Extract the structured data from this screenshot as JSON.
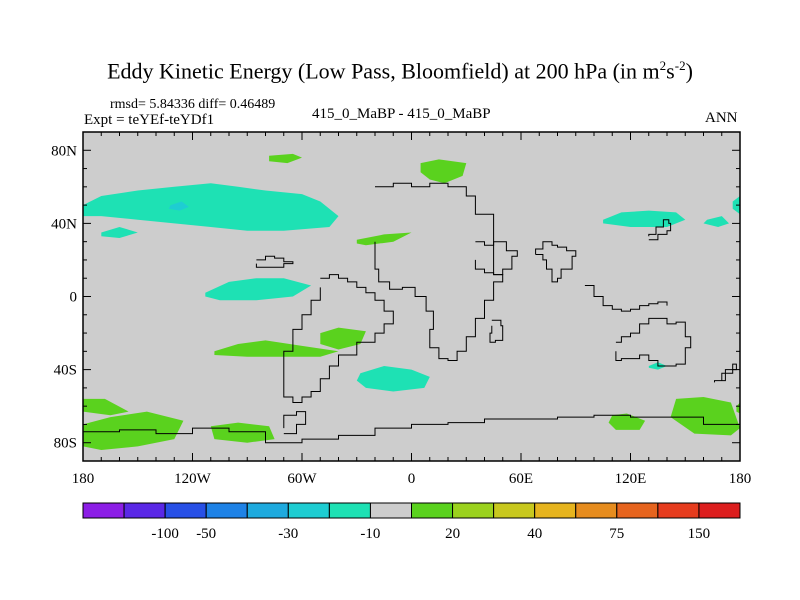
{
  "chart_data": {
    "type": "heatmap",
    "title_main": "Eddy Kinetic Energy (Low Pass, Bloomfield) at 200 hPa (in m",
    "title_sup1": "2",
    "title_mid": "s",
    "title_sup2": "-2",
    "title_end": ")",
    "rmsd_text": "rmsd= 5.84336 diff= 0.46489",
    "expt_text": "Expt = teYEf-teYDf1",
    "cases_text": "415_0_MaBP - 415_0_MaBP",
    "season_text": "ANN",
    "x_range": [
      -180,
      180
    ],
    "y_range": [
      -90,
      90
    ],
    "x_ticks": [
      {
        "value": -180,
        "label": "180"
      },
      {
        "value": -120,
        "label": "120W"
      },
      {
        "value": -60,
        "label": "60W"
      },
      {
        "value": 0,
        "label": "0"
      },
      {
        "value": 60,
        "label": "60E"
      },
      {
        "value": 120,
        "label": "120E"
      },
      {
        "value": 180,
        "label": "180"
      }
    ],
    "y_ticks": [
      {
        "value": 80,
        "label": "80N"
      },
      {
        "value": 40,
        "label": "40N"
      },
      {
        "value": 0,
        "label": "0"
      },
      {
        "value": -40,
        "label": "40S"
      },
      {
        "value": -80,
        "label": "80S"
      }
    ],
    "colorbar": {
      "colors": [
        "#8c1ee6",
        "#5a28e6",
        "#2850e6",
        "#1e82e6",
        "#1eaade",
        "#1ecdd2",
        "#1ee1b4",
        "#cdcdcd",
        "#5ad21e",
        "#9bd21e",
        "#c8c81e",
        "#e6b41e",
        "#e68c1e",
        "#e6641e",
        "#e63c1e",
        "#dc1e1e"
      ],
      "labels": [
        {
          "label": "-100",
          "boundary": 2
        },
        {
          "label": "-50",
          "boundary": 3
        },
        {
          "label": "-30",
          "boundary": 5
        },
        {
          "label": "-10",
          "boundary": 7
        },
        {
          "label": "20",
          "boundary": 9
        },
        {
          "label": "40",
          "boundary": 11
        },
        {
          "label": "75",
          "boundary": 13
        },
        {
          "label": "150",
          "boundary": 15
        }
      ]
    },
    "anomaly_regions": [
      {
        "name": "north-pacific-negative",
        "level": "-10",
        "color": "#1ee1b4",
        "lon": [
          -180,
          -170,
          -150,
          -130,
          -110,
          -95,
          -80,
          -60,
          -50,
          -40,
          -45,
          -70,
          -90,
          -110,
          -130,
          -150,
          -170,
          -180
        ],
        "lat": [
          50,
          55,
          58,
          60,
          62,
          60,
          58,
          56,
          52,
          44,
          38,
          36,
          36,
          38,
          40,
          42,
          44,
          44
        ]
      },
      {
        "name": "north-pacific-negative-core",
        "level": "-30",
        "color": "#1ecdd2",
        "lon": [
          -132,
          -126,
          -122,
          -127,
          -133
        ],
        "lat": [
          50,
          52,
          49,
          47,
          48
        ]
      },
      {
        "name": "north-atlantic-negative",
        "level": "-10",
        "color": "#1ee1b4",
        "lon": [
          -170,
          -160,
          -150,
          -160,
          -170
        ],
        "lat": [
          35,
          38,
          35,
          32,
          33
        ]
      },
      {
        "name": "east-pacific-west-negative",
        "level": "-10",
        "color": "#1ee1b4",
        "lon": [
          105,
          115,
          130,
          145,
          150,
          140,
          120,
          105
        ],
        "lat": [
          42,
          46,
          47,
          46,
          42,
          38,
          38,
          40
        ]
      },
      {
        "name": "dateline-negative",
        "level": "-10",
        "color": "#1ee1b4",
        "lon": [
          162,
          170,
          174,
          168,
          160
        ],
        "lat": [
          42,
          44,
          40,
          38,
          40
        ]
      },
      {
        "name": "east-edge-negative",
        "level": "-10",
        "color": "#1ee1b4",
        "lon": [
          176,
          180,
          180,
          176
        ],
        "lat": [
          52,
          55,
          45,
          48
        ]
      },
      {
        "name": "tropical-negative",
        "level": "-10",
        "color": "#1ee1b4",
        "lon": [
          -113,
          -100,
          -85,
          -70,
          -55,
          -65,
          -85,
          -105,
          -113
        ],
        "lat": [
          2,
          8,
          10,
          10,
          6,
          0,
          -2,
          -2,
          0
        ]
      },
      {
        "name": "south-atlantic-negative",
        "level": "-10",
        "color": "#1ee1b4",
        "lon": [
          -28,
          -15,
          0,
          10,
          7,
          -10,
          -25,
          -30
        ],
        "lat": [
          -42,
          -38,
          -40,
          -44,
          -50,
          -52,
          -50,
          -46
        ]
      },
      {
        "name": "indian-ocean-negative",
        "level": "-10",
        "color": "#1ee1b4",
        "lon": [
          130,
          135,
          140,
          135,
          130
        ],
        "lat": [
          -38,
          -36,
          -38,
          -40,
          -39
        ]
      },
      {
        "name": "greenland-positive",
        "level": "20",
        "color": "#5ad21e",
        "lon": [
          -78,
          -65,
          -60,
          -68,
          -78
        ],
        "lat": [
          77,
          78,
          76,
          73,
          74
        ]
      },
      {
        "name": "europe-positive",
        "level": "20",
        "color": "#5ad21e",
        "lon": [
          5,
          15,
          30,
          28,
          18,
          10,
          5
        ],
        "lat": [
          73,
          75,
          73,
          66,
          62,
          64,
          68
        ]
      },
      {
        "name": "mediterranean-positive",
        "level": "20",
        "color": "#5ad21e",
        "lon": [
          -30,
          -15,
          0,
          -10,
          -25,
          -30
        ],
        "lat": [
          31,
          34,
          35,
          30,
          28,
          29
        ]
      },
      {
        "name": "south-pacific-positive",
        "level": "20",
        "color": "#5ad21e",
        "lon": [
          -108,
          -95,
          -80,
          -60,
          -40,
          -50,
          -70,
          -90,
          -108
        ],
        "lat": [
          -30,
          -26,
          -24,
          -27,
          -30,
          -33,
          -33,
          -33,
          -32
        ]
      },
      {
        "name": "south-atlantic-small-positive",
        "level": "20",
        "color": "#5ad21e",
        "lon": [
          -50,
          -40,
          -25,
          -28,
          -40,
          -50
        ],
        "lat": [
          -20,
          -17,
          -19,
          -26,
          -29,
          -26
        ]
      },
      {
        "name": "southern-ocean-west-positive",
        "level": "20",
        "color": "#5ad21e",
        "lon": [
          -180,
          -165,
          -145,
          -125,
          -130,
          -150,
          -170,
          -180
        ],
        "lat": [
          -70,
          -66,
          -63,
          -68,
          -78,
          -82,
          -84,
          -82
        ]
      },
      {
        "name": "southern-ocean-small-west",
        "level": "20",
        "color": "#5ad21e",
        "lon": [
          -180,
          -168,
          -155,
          -165,
          -180
        ],
        "lat": [
          -56,
          -56,
          -63,
          -65,
          -63
        ]
      },
      {
        "name": "antarctic-edge-positive",
        "level": "20",
        "color": "#5ad21e",
        "lon": [
          -110,
          -95,
          -78,
          -75,
          -90,
          -108
        ],
        "lat": [
          -71,
          -69,
          -71,
          -78,
          -80,
          -78
        ]
      },
      {
        "name": "southern-ocean-east-positive",
        "level": "20",
        "color": "#5ad21e",
        "lon": [
          110,
          118,
          128,
          125,
          112,
          108
        ],
        "lat": [
          -65,
          -64,
          -68,
          -73,
          -73,
          -69
        ]
      },
      {
        "name": "southern-ocean-dateline-positive",
        "level": "20",
        "color": "#5ad21e",
        "lon": [
          145,
          160,
          175,
          180,
          175,
          155,
          142
        ],
        "lat": [
          -56,
          -55,
          -58,
          -72,
          -76,
          -75,
          -66
        ]
      },
      {
        "name": "east-edge-small-positive",
        "level": "20",
        "color": "#5ad21e",
        "lon": [
          178,
          180,
          180,
          178
        ],
        "lat": [
          -60,
          -58,
          -64,
          -63
        ]
      }
    ],
    "coastlines": [
      {
        "name": "south-america",
        "lon": [
          -50,
          -45,
          -40,
          -35,
          -30,
          -25,
          -20,
          -15,
          -10,
          -15,
          -20,
          -30,
          -40,
          -45,
          -50,
          -55,
          -60,
          -65,
          -70,
          -70,
          -65,
          -60,
          -55,
          -50
        ],
        "lat": [
          10,
          12,
          10,
          8,
          5,
          2,
          -2,
          -8,
          -15,
          -20,
          -25,
          -32,
          -38,
          -45,
          -52,
          -55,
          -58,
          -55,
          -50,
          -30,
          -18,
          -10,
          -2,
          5
        ]
      },
      {
        "name": "africa",
        "lon": [
          -20,
          -10,
          0,
          10,
          20,
          30,
          35,
          45,
          50,
          45,
          40,
          35,
          30,
          25,
          20,
          15,
          10,
          12,
          8,
          2,
          -5,
          -12,
          -18,
          -20
        ],
        "lat": [
          60,
          62,
          60,
          62,
          60,
          55,
          45,
          12,
          8,
          -2,
          -12,
          -22,
          -30,
          -35,
          -34,
          -28,
          -18,
          -8,
          0,
          5,
          4,
          8,
          15,
          30
        ]
      },
      {
        "name": "antarctica-coast",
        "lon": [
          -180,
          -160,
          -140,
          -120,
          -100,
          -80,
          -60,
          -40,
          -20,
          0,
          20,
          40,
          60,
          80,
          100,
          120,
          140,
          160,
          180
        ],
        "lat": [
          -74,
          -73,
          -75,
          -72,
          -74,
          -80,
          -78,
          -76,
          -72,
          -70,
          -69,
          -67,
          -67,
          -66,
          -65,
          -66,
          -66,
          -70,
          -75
        ]
      },
      {
        "name": "antarctic-peninsula",
        "lon": [
          -70,
          -63,
          -58,
          -63,
          -70
        ],
        "lat": [
          -75,
          -70,
          -63,
          -65,
          -72
        ]
      },
      {
        "name": "australia",
        "lon": [
          112,
          115,
          120,
          125,
          130,
          135,
          140,
          145,
          150,
          153,
          150,
          145,
          140,
          135,
          130,
          125,
          115,
          112
        ],
        "lat": [
          -25,
          -22,
          -20,
          -15,
          -12,
          -12,
          -15,
          -14,
          -22,
          -28,
          -37,
          -38,
          -38,
          -35,
          -32,
          -34,
          -35,
          -30
        ]
      },
      {
        "name": "new-zealand",
        "lon": [
          166,
          172,
          178,
          176,
          170,
          166
        ],
        "lat": [
          -46,
          -40,
          -37,
          -42,
          -46,
          -47
        ]
      },
      {
        "name": "indonesia-arc",
        "lon": [
          95,
          100,
          105,
          110,
          115,
          120,
          125,
          130,
          135,
          140
        ],
        "lat": [
          6,
          0,
          -5,
          -7,
          -8,
          -7,
          -5,
          -4,
          -3,
          -5
        ]
      },
      {
        "name": "madagascar",
        "lon": [
          44,
          49,
          50,
          46,
          43,
          44
        ],
        "lat": [
          -13,
          -16,
          -24,
          -25,
          -20,
          -16
        ]
      },
      {
        "name": "arabia",
        "lon": [
          35,
          40,
          45,
          52,
          58,
          55,
          50,
          45,
          40,
          35
        ],
        "lat": [
          30,
          28,
          30,
          25,
          22,
          15,
          12,
          13,
          15,
          20
        ]
      },
      {
        "name": "india",
        "lon": [
          68,
          72,
          74,
          77,
          80,
          82,
          88,
          90,
          85,
          80,
          77,
          72,
          68
        ],
        "lat": [
          23,
          20,
          15,
          8,
          10,
          15,
          22,
          25,
          27,
          28,
          30,
          26,
          23
        ]
      },
      {
        "name": "japan",
        "lon": [
          130,
          135,
          140,
          142,
          141,
          138,
          134,
          130
        ],
        "lat": [
          31,
          34,
          36,
          40,
          42,
          38,
          34,
          33
        ]
      },
      {
        "name": "caribbean",
        "lon": [
          -85,
          -80,
          -75,
          -70,
          -65,
          -70,
          -78,
          -85
        ],
        "lat": [
          20,
          22,
          21,
          19,
          18,
          16,
          16,
          18
        ]
      }
    ]
  }
}
